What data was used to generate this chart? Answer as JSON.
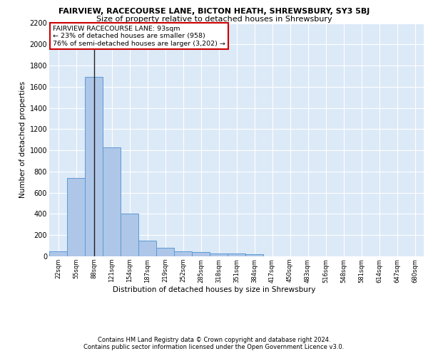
{
  "title_line1": "FAIRVIEW, RACECOURSE LANE, BICTON HEATH, SHREWSBURY, SY3 5BJ",
  "title_line2": "Size of property relative to detached houses in Shrewsbury",
  "xlabel": "Distribution of detached houses by size in Shrewsbury",
  "ylabel": "Number of detached properties",
  "bin_labels": [
    "22sqm",
    "55sqm",
    "88sqm",
    "121sqm",
    "154sqm",
    "187sqm",
    "219sqm",
    "252sqm",
    "285sqm",
    "318sqm",
    "351sqm",
    "384sqm",
    "417sqm",
    "450sqm",
    "483sqm",
    "516sqm",
    "548sqm",
    "581sqm",
    "614sqm",
    "647sqm",
    "680sqm"
  ],
  "bar_values": [
    50,
    740,
    1690,
    1030,
    405,
    150,
    80,
    45,
    40,
    28,
    25,
    18,
    0,
    0,
    0,
    0,
    0,
    0,
    0,
    0,
    0
  ],
  "bar_color": "#aec6e8",
  "bar_edge_color": "#5b9bd5",
  "highlight_line_color": "#1f1f1f",
  "annotation_text": "FAIRVIEW RACECOURSE LANE: 93sqm\n← 23% of detached houses are smaller (958)\n76% of semi-detached houses are larger (3,202) →",
  "annotation_box_color": "#ffffff",
  "annotation_border_color": "#cc0000",
  "ylim": [
    0,
    2200
  ],
  "yticks": [
    0,
    200,
    400,
    600,
    800,
    1000,
    1200,
    1400,
    1600,
    1800,
    2000,
    2200
  ],
  "background_color": "#dce9f7",
  "footer_text1": "Contains HM Land Registry data © Crown copyright and database right 2024.",
  "footer_text2": "Contains public sector information licensed under the Open Government Licence v3.0."
}
